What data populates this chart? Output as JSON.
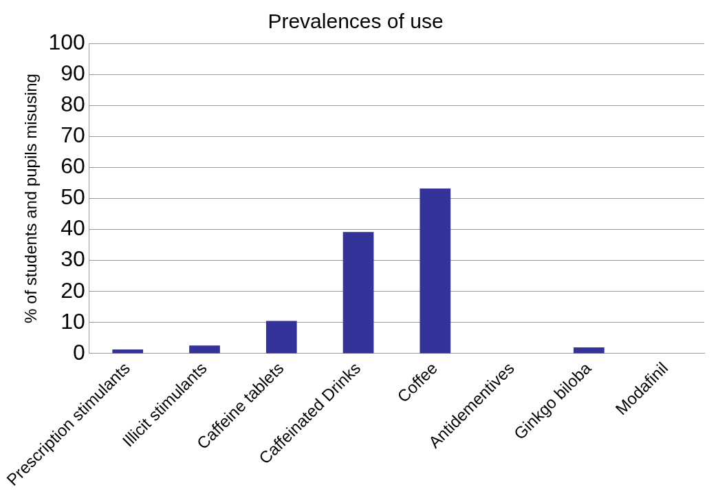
{
  "chart_data": {
    "type": "bar",
    "title": "Prevalences of use",
    "ylabel": "% of students and pupils misusing",
    "categories": [
      "Prescription stimulants",
      "Illicit stimulants",
      "Caffeine tablets",
      "Caffeinated Drinks",
      "Coffee",
      "Antidementives",
      "Ginkgo biloba",
      "Modafinil"
    ],
    "values": [
      1.3,
      2.6,
      10.5,
      39.2,
      53.2,
      0,
      2.0,
      0
    ],
    "color": "#333399",
    "ylim": [
      0,
      100
    ],
    "yticks": [
      0,
      10,
      20,
      30,
      40,
      50,
      60,
      70,
      80,
      90,
      100
    ],
    "grid": "y",
    "legend": false
  }
}
